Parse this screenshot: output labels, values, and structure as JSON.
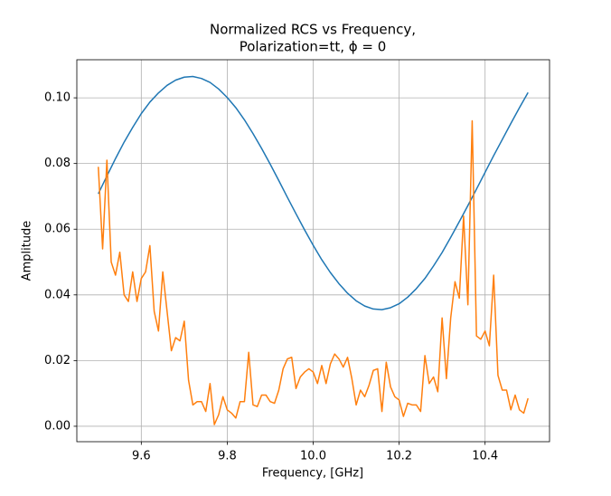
{
  "chart_data": {
    "type": "line",
    "title": [
      "Normalized RCS vs Frequency,",
      "Polarization=tt, ϕ = 0"
    ],
    "xlabel": "Frequency, [GHz]",
    "ylabel": "Amplitude",
    "xlim": [
      9.45,
      10.55
    ],
    "ylim": [
      -0.0047,
      0.1116
    ],
    "xticks": [
      9.6,
      9.8,
      {
        "value": 10,
        "label": "10.0"
      },
      10.2,
      10.4
    ],
    "yticks": [
      {
        "value": 0,
        "label": "0.00"
      },
      0.02,
      0.04,
      0.06,
      0.08,
      {
        "value": 0.1,
        "label": "0.10"
      }
    ],
    "grid": true,
    "series": [
      {
        "color": "#1f77b4",
        "x": [
          9.5,
          9.52,
          9.54,
          9.56,
          9.58,
          9.6,
          9.62,
          9.64,
          9.66,
          9.68,
          9.7,
          9.72,
          9.74,
          9.76,
          9.78,
          9.8,
          9.82,
          9.84,
          9.86,
          9.88,
          9.9,
          9.92,
          9.94,
          9.96,
          9.98,
          10.0,
          10.02,
          10.04,
          10.06,
          10.08,
          10.1,
          10.12,
          10.14,
          10.16,
          10.18,
          10.2,
          10.22,
          10.24,
          10.26,
          10.28,
          10.3,
          10.32,
          10.34,
          10.36,
          10.38,
          10.4,
          10.42,
          10.44,
          10.46,
          10.48,
          10.5
        ],
        "values": [
          0.0708,
          0.0762,
          0.0815,
          0.0865,
          0.091,
          0.0952,
          0.0987,
          0.1015,
          0.1038,
          0.1054,
          0.1063,
          0.1065,
          0.1059,
          0.1047,
          0.1027,
          0.1001,
          0.097,
          0.0933,
          0.0891,
          0.0846,
          0.0798,
          0.0748,
          0.0697,
          0.0647,
          0.0598,
          0.0551,
          0.0507,
          0.0468,
          0.0434,
          0.0405,
          0.0382,
          0.0366,
          0.0357,
          0.0355,
          0.0361,
          0.0373,
          0.0393,
          0.0419,
          0.045,
          0.0488,
          0.0529,
          0.0575,
          0.0623,
          0.0672,
          0.0722,
          0.0773,
          0.0824,
          0.0873,
          0.0922,
          0.097,
          0.1016
        ]
      },
      {
        "color": "#ff7f0e",
        "x": [
          9.5,
          9.51,
          9.52,
          9.53,
          9.54,
          9.55,
          9.56,
          9.57,
          9.58,
          9.59,
          9.6,
          9.61,
          9.62,
          9.63,
          9.64,
          9.65,
          9.66,
          9.67,
          9.68,
          9.69,
          9.7,
          9.71,
          9.72,
          9.73,
          9.74,
          9.75,
          9.76,
          9.77,
          9.78,
          9.79,
          9.8,
          9.81,
          9.82,
          9.83,
          9.84,
          9.85,
          9.86,
          9.87,
          9.88,
          9.89,
          9.9,
          9.91,
          9.92,
          9.93,
          9.94,
          9.95,
          9.96,
          9.97,
          9.98,
          9.99,
          10.0,
          10.01,
          10.02,
          10.03,
          10.04,
          10.05,
          10.06,
          10.07,
          10.08,
          10.09,
          10.1,
          10.11,
          10.12,
          10.13,
          10.14,
          10.15,
          10.16,
          10.17,
          10.18,
          10.19,
          10.2,
          10.21,
          10.22,
          10.23,
          10.24,
          10.25,
          10.26,
          10.27,
          10.28,
          10.29,
          10.3,
          10.31,
          10.32,
          10.33,
          10.34,
          10.35,
          10.36,
          10.37,
          10.38,
          10.39,
          10.4,
          10.41,
          10.42,
          10.43,
          10.44,
          10.45,
          10.46,
          10.47,
          10.48,
          10.49,
          10.5
        ],
        "values": [
          0.079,
          0.054,
          0.081,
          0.05,
          0.046,
          0.053,
          0.04,
          0.038,
          0.047,
          0.038,
          0.045,
          0.047,
          0.055,
          0.035,
          0.029,
          0.047,
          0.035,
          0.023,
          0.027,
          0.026,
          0.032,
          0.014,
          0.0065,
          0.0075,
          0.0075,
          0.0045,
          0.013,
          0.0005,
          0.0035,
          0.009,
          0.005,
          0.004,
          0.0025,
          0.0075,
          0.0075,
          0.0225,
          0.0065,
          0.006,
          0.0095,
          0.0095,
          0.0075,
          0.007,
          0.011,
          0.0175,
          0.0205,
          0.021,
          0.0115,
          0.015,
          0.0165,
          0.0175,
          0.0165,
          0.013,
          0.0185,
          0.013,
          0.019,
          0.022,
          0.0205,
          0.018,
          0.021,
          0.0145,
          0.0065,
          0.011,
          0.009,
          0.0125,
          0.017,
          0.0175,
          0.0045,
          0.0195,
          0.012,
          0.009,
          0.008,
          0.003,
          0.007,
          0.0065,
          0.0065,
          0.0045,
          0.0215,
          0.013,
          0.015,
          0.0105,
          0.033,
          0.0145,
          0.033,
          0.044,
          0.039,
          0.064,
          0.037,
          0.093,
          0.0275,
          0.0265,
          0.029,
          0.0245,
          0.046,
          0.0155,
          0.011,
          0.011,
          0.005,
          0.0095,
          0.005,
          0.004,
          0.0085
        ]
      }
    ]
  }
}
